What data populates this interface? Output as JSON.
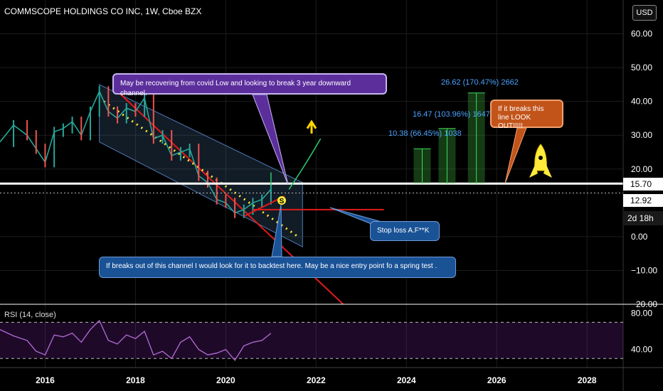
{
  "chart_data": {
    "type": "line",
    "title": "COMMSCOPE HOLDINGS CO INC, 1W, Cboe BZX",
    "currency_button": "USD",
    "price_axis": {
      "ticks": [
        60,
        50,
        40,
        30,
        20,
        0,
        -10,
        -20
      ],
      "tick_labels": [
        "60.00",
        "50.00",
        "40.00",
        "30.00",
        "20.00",
        "0.00",
        "−10.00",
        "−20.00"
      ],
      "range": [
        -20,
        70
      ]
    },
    "price_tags": [
      {
        "value": 15.7,
        "label": "15.70",
        "style": "white"
      },
      {
        "value": 12.92,
        "label": "12.92",
        "style": "white"
      },
      {
        "label": "2d 18h",
        "style": "dark"
      }
    ],
    "time_axis": {
      "ticks": [
        2016,
        2018,
        2020,
        2022,
        2024,
        2026,
        2028
      ],
      "tick_labels": [
        "2016",
        "2018",
        "2020",
        "2022",
        "2024",
        "2026",
        "2028"
      ],
      "range": [
        2015.0,
        2028.8
      ]
    },
    "series": [
      {
        "name": "",
        "x": [
          2015.0,
          2015.3,
          2015.6,
          2015.8,
          2016.0,
          2016.2,
          2016.4,
          2016.6,
          2016.8,
          2017.0,
          2017.2,
          2017.4,
          2017.6,
          2017.8,
          2018.0,
          2018.2,
          2018.4,
          2018.6,
          2018.8,
          2019.0,
          2019.2,
          2019.4,
          2019.6,
          2019.8,
          2020.0,
          2020.2,
          2020.4,
          2020.6,
          2020.8,
          2021.0
        ],
        "y": [
          28,
          33,
          30,
          26,
          22,
          31,
          32,
          34,
          30,
          37,
          43,
          37,
          35,
          38,
          37,
          41,
          29,
          30,
          24,
          25,
          26,
          18,
          16,
          11,
          10,
          7,
          8,
          10,
          11,
          14
        ]
      }
    ],
    "drawings": {
      "horizontal_level": 15.7,
      "stop_loss_level": 8.0,
      "measure_bars": [
        {
          "label": "10.38 (66.45%) 1038",
          "top": 26.0
        },
        {
          "label": "16.47 (103.96%) 1647",
          "top": 32.0
        },
        {
          "label": "26.62 (170.47%) 2662",
          "top": 42.5
        }
      ]
    },
    "annotations": [
      "May be recovering from covid Low and looking to break 3 year downward channel.",
      "If breaks out of this channel I would look for it to backtest here.  May be a nice entry point fo a spring test .",
      "Stop loss A.F**K",
      "If it breaks this line LOOK OUT!!!!!",
      "S"
    ],
    "rsi": {
      "label": "RSI (14, close)",
      "ticks": [
        80,
        40
      ],
      "tick_labels": [
        "80.00",
        "40.00"
      ],
      "bands": [
        70,
        30
      ],
      "range": [
        20,
        90
      ],
      "x": [
        2015.0,
        2015.3,
        2015.6,
        2015.8,
        2016.0,
        2016.2,
        2016.4,
        2016.6,
        2016.8,
        2017.0,
        2017.2,
        2017.4,
        2017.6,
        2017.8,
        2018.0,
        2018.2,
        2018.4,
        2018.6,
        2018.8,
        2019.0,
        2019.2,
        2019.4,
        2019.6,
        2019.8,
        2020.0,
        2020.2,
        2020.4,
        2020.6,
        2020.8,
        2021.0
      ],
      "y": [
        62,
        55,
        50,
        38,
        34,
        56,
        54,
        58,
        48,
        62,
        72,
        50,
        46,
        56,
        52,
        60,
        34,
        38,
        30,
        48,
        54,
        40,
        34,
        36,
        40,
        28,
        44,
        48,
        50,
        58
      ]
    }
  }
}
